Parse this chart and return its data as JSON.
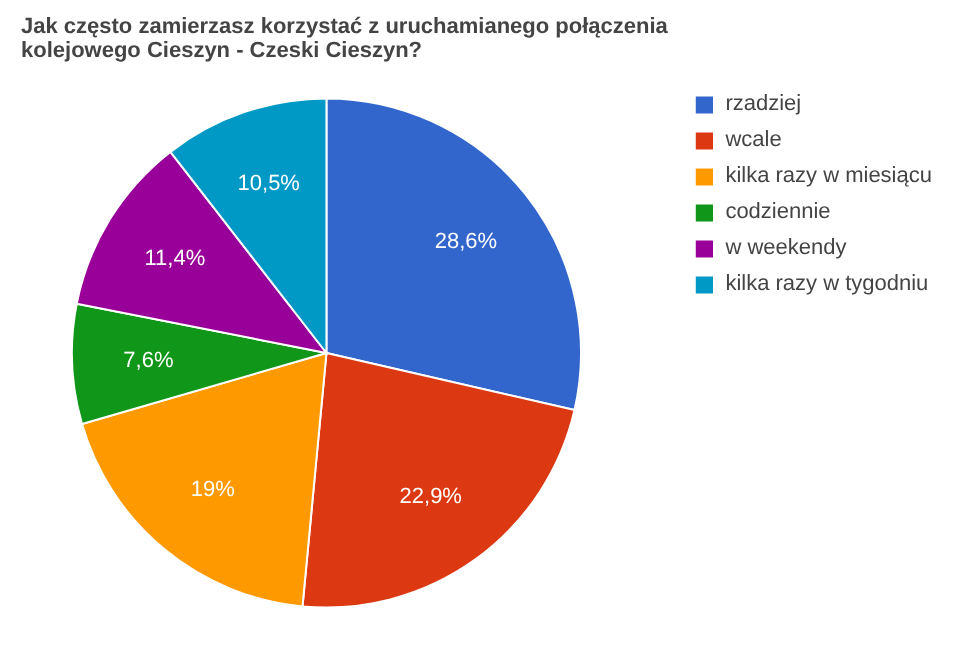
{
  "chart_data": {
    "type": "pie",
    "title": "Jak często zamierzasz korzystać z uruchamianego połączenia kolejowego Cieszyn - Czeski Cieszyn?",
    "categories": [
      "rzadziej",
      "wcale",
      "kilka razy w miesiącu",
      "codziennie",
      "w weekendy",
      "kilka razy w tygodniu"
    ],
    "values": [
      28.6,
      22.9,
      19,
      7.6,
      11.4,
      10.5
    ],
    "value_labels": [
      "28,6%",
      "22,9%",
      "19%",
      "7,6%",
      "11,4%",
      "10,5%"
    ],
    "colors": [
      "#3366cc",
      "#dc3912",
      "#ff9900",
      "#109618",
      "#990099",
      "#0099c6"
    ],
    "legend": "right"
  }
}
